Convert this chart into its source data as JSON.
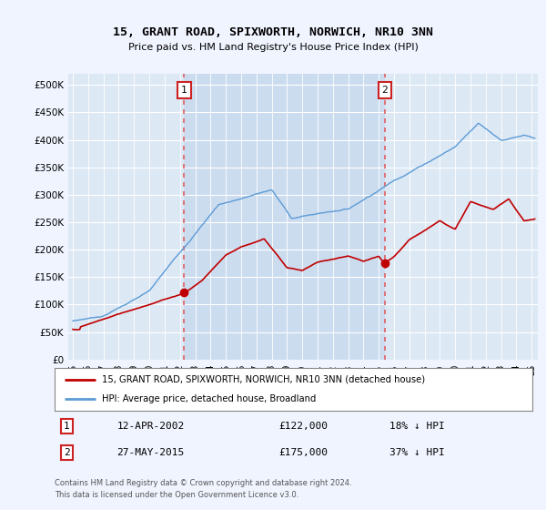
{
  "title": "15, GRANT ROAD, SPIXWORTH, NORWICH, NR10 3NN",
  "subtitle": "Price paid vs. HM Land Registry's House Price Index (HPI)",
  "ytick_values": [
    0,
    50000,
    100000,
    150000,
    200000,
    250000,
    300000,
    350000,
    400000,
    450000,
    500000
  ],
  "ylim": [
    0,
    520000
  ],
  "xlim_start": 1994.7,
  "xlim_end": 2025.4,
  "sale1_x": 2002.28,
  "sale1_y": 122000,
  "sale1_label": "12-APR-2002",
  "sale1_price": "£122,000",
  "sale1_hpi": "18% ↓ HPI",
  "sale2_x": 2015.4,
  "sale2_y": 175000,
  "sale2_label": "27-MAY-2015",
  "sale2_price": "£175,000",
  "sale2_hpi": "37% ↓ HPI",
  "hpi_line_color": "#5b9bd5",
  "sale_line_color": "#c00000",
  "vline_color": "#e06060",
  "legend_label1": "15, GRANT ROAD, SPIXWORTH, NORWICH, NR10 3NN (detached house)",
  "legend_label2": "HPI: Average price, detached house, Broadland",
  "footer1": "Contains HM Land Registry data © Crown copyright and database right 2024.",
  "footer2": "This data is licensed under the Open Government Licence v3.0.",
  "background_color": "#f0f4ff",
  "plot_bg_color": "#dde8f5",
  "highlight_bg_color": "#ccdcef"
}
